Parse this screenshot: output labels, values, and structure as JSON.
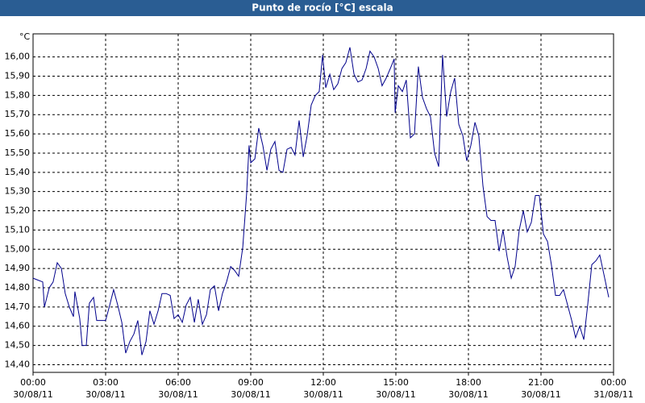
{
  "chart_data": {
    "type": "line",
    "title": "Punto de rocío [°C] escala",
    "y_unit": "°C",
    "x": [
      0,
      0.2,
      0.4,
      0.47,
      0.67,
      0.83,
      1.0,
      1.17,
      1.33,
      1.5,
      1.67,
      1.73,
      1.93,
      2.03,
      2.2,
      2.33,
      2.5,
      2.63,
      2.8,
      3.0,
      3.17,
      3.33,
      3.5,
      3.67,
      3.83,
      4.0,
      4.17,
      4.33,
      4.5,
      4.67,
      4.83,
      5.0,
      5.17,
      5.33,
      5.5,
      5.67,
      5.83,
      6.0,
      6.17,
      6.33,
      6.5,
      6.67,
      6.83,
      7.0,
      7.17,
      7.33,
      7.5,
      7.67,
      7.83,
      8.0,
      8.17,
      8.33,
      8.5,
      8.67,
      8.83,
      8.93,
      9.0,
      9.17,
      9.33,
      9.5,
      9.67,
      9.83,
      10.0,
      10.17,
      10.33,
      10.5,
      10.67,
      10.83,
      11.0,
      11.17,
      11.33,
      11.5,
      11.67,
      11.83,
      11.97,
      12.1,
      12.27,
      12.43,
      12.6,
      12.77,
      12.93,
      13.1,
      13.27,
      13.43,
      13.6,
      13.77,
      13.93,
      14.1,
      14.27,
      14.43,
      14.6,
      14.77,
      14.93,
      14.97,
      15.1,
      15.27,
      15.43,
      15.6,
      15.77,
      15.93,
      16.1,
      16.27,
      16.43,
      16.6,
      16.77,
      16.93,
      17.1,
      17.27,
      17.43,
      17.6,
      17.77,
      17.93,
      18.1,
      18.27,
      18.43,
      18.6,
      18.77,
      18.93,
      19.1,
      19.27,
      19.43,
      19.6,
      19.77,
      19.93,
      20.1,
      20.27,
      20.43,
      20.6,
      20.77,
      20.93,
      21.1,
      21.27,
      21.43,
      21.6,
      21.77,
      21.93,
      22.1,
      22.27,
      22.43,
      22.6,
      22.77,
      22.93,
      23.1,
      23.27,
      23.43,
      23.6,
      23.8
    ],
    "values": [
      14.85,
      14.84,
      14.83,
      14.7,
      14.8,
      14.83,
      14.93,
      14.9,
      14.77,
      14.7,
      14.65,
      14.78,
      14.64,
      14.5,
      14.5,
      14.72,
      14.75,
      14.63,
      14.63,
      14.63,
      14.71,
      14.79,
      14.71,
      14.62,
      14.46,
      14.52,
      14.56,
      14.63,
      14.45,
      14.52,
      14.68,
      14.61,
      14.68,
      14.77,
      14.77,
      14.76,
      14.64,
      14.66,
      14.62,
      14.71,
      14.75,
      14.62,
      14.74,
      14.61,
      14.66,
      14.79,
      14.81,
      14.68,
      14.77,
      14.83,
      14.91,
      14.89,
      14.86,
      15.01,
      15.29,
      15.54,
      15.45,
      15.47,
      15.63,
      15.54,
      15.41,
      15.52,
      15.56,
      15.41,
      15.4,
      15.52,
      15.53,
      15.49,
      15.67,
      15.48,
      15.59,
      15.75,
      15.8,
      15.82,
      16.01,
      15.84,
      15.91,
      15.83,
      15.86,
      15.94,
      15.97,
      16.05,
      15.91,
      15.87,
      15.88,
      15.94,
      16.03,
      16.0,
      15.94,
      15.85,
      15.89,
      15.94,
      15.99,
      15.71,
      15.85,
      15.82,
      15.88,
      15.58,
      15.6,
      15.95,
      15.79,
      15.73,
      15.69,
      15.5,
      15.43,
      16.01,
      15.69,
      15.82,
      15.89,
      15.65,
      15.59,
      15.46,
      15.54,
      15.66,
      15.59,
      15.33,
      15.17,
      15.15,
      15.15,
      14.99,
      15.1,
      14.96,
      14.85,
      14.91,
      15.1,
      15.2,
      15.09,
      15.14,
      15.28,
      15.28,
      15.08,
      15.04,
      14.92,
      14.76,
      14.76,
      14.79,
      14.71,
      14.63,
      14.54,
      14.6,
      14.53,
      14.71,
      14.92,
      14.94,
      14.97,
      14.87,
      14.75
    ],
    "color": "#00008b",
    "xlim": [
      0,
      24
    ],
    "xticks": [
      {
        "value": 0,
        "label": "00:00"
      },
      {
        "value": 3,
        "label": "03:00"
      },
      {
        "value": 6,
        "label": "06:00"
      },
      {
        "value": 9,
        "label": "09:00"
      },
      {
        "value": 12,
        "label": "12:00"
      },
      {
        "value": 15,
        "label": "15:00"
      },
      {
        "value": 18,
        "label": "18:00"
      },
      {
        "value": 21,
        "label": "21:00"
      },
      {
        "value": 24,
        "label": "00:00"
      }
    ],
    "xtick_dates": [
      "30/08/11",
      "30/08/11",
      "30/08/11",
      "30/08/11",
      "30/08/11",
      "30/08/11",
      "30/08/11",
      "30/08/11",
      "31/08/11"
    ],
    "ylim": [
      14.36,
      16.12
    ],
    "yticks": [
      {
        "value": 14.4,
        "label": "14,40"
      },
      {
        "value": 14.5,
        "label": "14,50"
      },
      {
        "value": 14.6,
        "label": "14,60"
      },
      {
        "value": 14.7,
        "label": "14,70"
      },
      {
        "value": 14.8,
        "label": "14,80"
      },
      {
        "value": 14.9,
        "label": "14,90"
      },
      {
        "value": 15.0,
        "label": "15,00"
      },
      {
        "value": 15.1,
        "label": "15,10"
      },
      {
        "value": 15.2,
        "label": "15,20"
      },
      {
        "value": 15.3,
        "label": "15,30"
      },
      {
        "value": 15.4,
        "label": "15,40"
      },
      {
        "value": 15.5,
        "label": "15,50"
      },
      {
        "value": 15.6,
        "label": "15,60"
      },
      {
        "value": 15.7,
        "label": "15,70"
      },
      {
        "value": 15.8,
        "label": "15,80"
      },
      {
        "value": 15.9,
        "label": "15,90"
      },
      {
        "value": 16.0,
        "label": "16,00"
      }
    ],
    "grid": true
  }
}
